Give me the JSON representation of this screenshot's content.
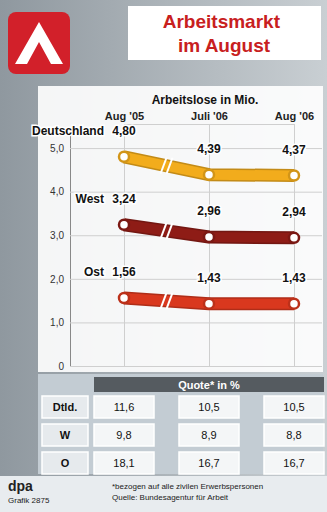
{
  "chart_data": {
    "type": "line",
    "title": "Arbeitsmarkt im August",
    "subtitle": "Arbeitslose in Mio.",
    "categories": [
      "Aug '05",
      "Juli '06",
      "Aug '06"
    ],
    "series": [
      {
        "name": "Deutschland",
        "color": "#f2ac1c",
        "values": [
          4.8,
          4.39,
          4.37
        ],
        "value_labels": [
          "4,80",
          "4,39",
          "4,37"
        ]
      },
      {
        "name": "West",
        "color": "#8e1c16",
        "values": [
          3.24,
          2.96,
          2.94
        ],
        "value_labels": [
          "3,24",
          "2,96",
          "2,94"
        ]
      },
      {
        "name": "Ost",
        "color": "#d9381e",
        "values": [
          1.56,
          1.43,
          1.43
        ],
        "value_labels": [
          "1,56",
          "1,43",
          "1,43"
        ]
      }
    ],
    "ylim": [
      0,
      5.3
    ],
    "yticks": [
      0,
      {
        "value": 1,
        "label": "1,0"
      },
      {
        "value": 2,
        "label": "2,0"
      },
      {
        "value": 3,
        "label": "3,0"
      },
      {
        "value": 4,
        "label": "4,0"
      },
      {
        "value": 5,
        "label": "5,0"
      }
    ],
    "grid": true,
    "data_labels": true,
    "marker": "circle"
  },
  "table": {
    "title": "Quote* in %",
    "rows": [
      [
        "Dtld.",
        "11,6",
        "10,5",
        "10,5"
      ],
      [
        "W",
        "9,8",
        "8,9",
        "8,8"
      ],
      [
        "O",
        "18,1",
        "16,7",
        "16,7"
      ]
    ]
  },
  "footer": {
    "note": "*bezogen auf alle zivilen Erwerbspersonen",
    "source": "Quelle: Bundesagentur für Arbeit"
  },
  "credit": {
    "agency": "dpa",
    "graphic": "Grafik 2875"
  }
}
